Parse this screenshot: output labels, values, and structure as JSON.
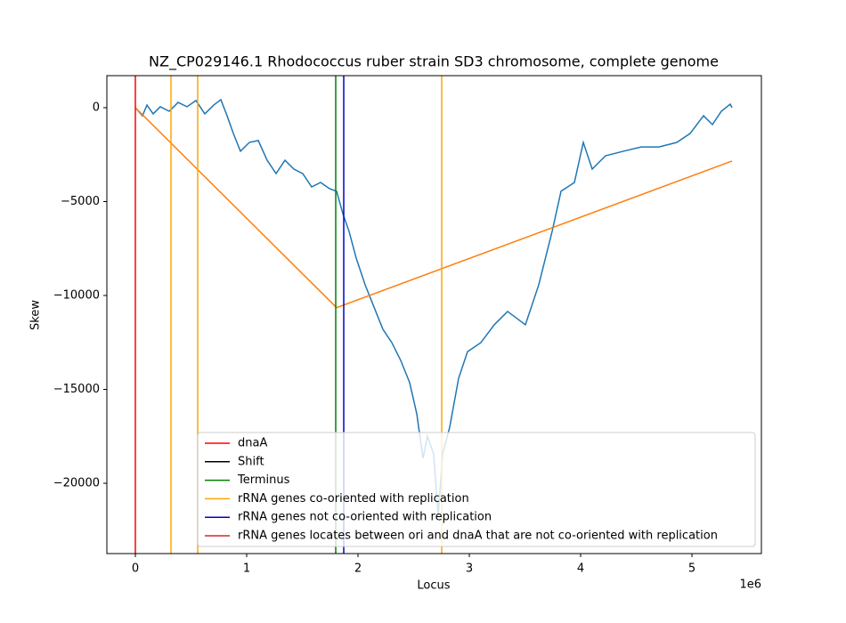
{
  "chart_data": {
    "type": "line",
    "title": "NZ_CP029146.1 Rhodococcus ruber strain SD3 chromosome, complete genome",
    "x_label": "Locus",
    "y_label": "Skew",
    "x_offset_label": "1e6",
    "xlim": [
      -256000,
      5624000
    ],
    "ylim": [
      -23744,
      1706
    ],
    "xticks": [
      0,
      {
        "value": 1000000,
        "label": "1"
      },
      {
        "value": 2000000,
        "label": "2"
      },
      {
        "value": 3000000,
        "label": "3"
      },
      {
        "value": 4000000,
        "label": "4"
      },
      {
        "value": 5000000,
        "label": "5"
      }
    ],
    "yticks": [
      0,
      {
        "value": -5000,
        "label": "−5000"
      },
      {
        "value": -10000,
        "label": "−10000"
      },
      {
        "value": -15000,
        "label": "−15000"
      },
      {
        "value": -20000,
        "label": "−20000"
      }
    ],
    "series": [
      {
        "color": "#1f77b4",
        "x": [
          0,
          64000,
          104000,
          160000,
          224000,
          304000,
          384000,
          464000,
          544000,
          624000,
          704000,
          768000,
          824000,
          880000,
          944000,
          1024000,
          1104000,
          1184000,
          1264000,
          1344000,
          1424000,
          1504000,
          1584000,
          1664000,
          1744000,
          1808000,
          1864000,
          1920000,
          1984000,
          2064000,
          2144000,
          2224000,
          2304000,
          2384000,
          2464000,
          2528000,
          2584000,
          2624000,
          2680000,
          2720000,
          2760000,
          2824000,
          2904000,
          2984000,
          3104000,
          3224000,
          3344000,
          3504000,
          3624000,
          3744000,
          3824000,
          3944000,
          4024000,
          4104000,
          4224000,
          4384000,
          4544000,
          4704000,
          4864000,
          4984000,
          5104000,
          5184000,
          5264000,
          5344000,
          5360000
        ],
        "values": [
          0,
          -430,
          140,
          -330,
          50,
          -190,
          280,
          50,
          380,
          -330,
          140,
          430,
          -430,
          -1370,
          -2320,
          -1850,
          -1750,
          -2800,
          -3510,
          -2800,
          -3270,
          -3510,
          -4220,
          -3980,
          -4310,
          -4450,
          -5640,
          -6590,
          -8010,
          -9430,
          -10620,
          -11800,
          -12510,
          -13460,
          -14640,
          -16300,
          -18670,
          -17490,
          -18440,
          -21750,
          -18440,
          -17010,
          -14410,
          -12990,
          -12510,
          -11560,
          -10850,
          -11560,
          -9430,
          -6590,
          -4450,
          -3980,
          -1850,
          -3270,
          -2560,
          -2320,
          -2090,
          -2090,
          -1850,
          -1370,
          -430,
          -900,
          -190,
          190,
          0
        ]
      },
      {
        "color": "#ff7f0e",
        "x": [
          0,
          1808000,
          5360000
        ],
        "values": [
          0,
          -10650,
          -2840
        ]
      }
    ],
    "vlines": [
      {
        "name": "dnaA",
        "color": "#ff0000",
        "positions": [
          0
        ]
      },
      {
        "name": "Shift",
        "color": "#000000",
        "positions": []
      },
      {
        "name": "Terminus",
        "color": "#008000",
        "positions": [
          1800000
        ]
      },
      {
        "name": "rRNA genes co-oriented with replication",
        "color": "#ffa500",
        "positions": [
          320000,
          560000,
          2752000
        ]
      },
      {
        "name": "rRNA genes not co-oriented with replication",
        "color": "#0000cd",
        "positions": [
          1872000
        ]
      },
      {
        "name": "rRNA genes locates between ori and dnaA that are not co-oriented with replication",
        "color": "#d62728",
        "positions": []
      }
    ]
  }
}
